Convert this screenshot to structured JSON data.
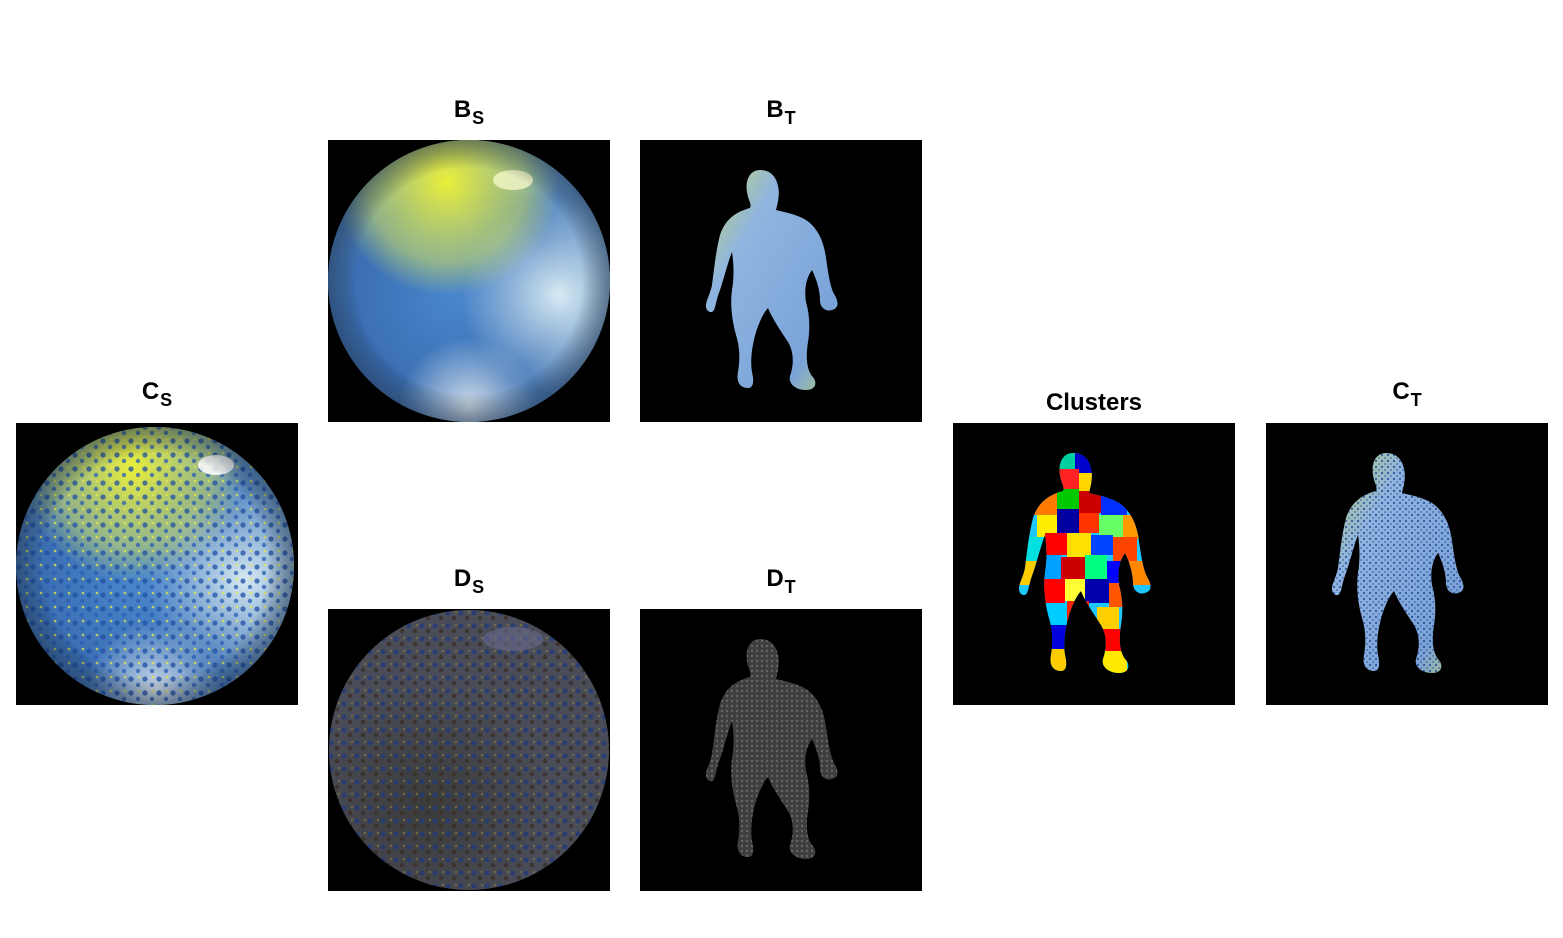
{
  "panels": {
    "cs": {
      "title": "C",
      "sub": "S"
    },
    "bs": {
      "title": "B",
      "sub": "S"
    },
    "bt": {
      "title": "B",
      "sub": "T"
    },
    "ds": {
      "title": "D",
      "sub": "S"
    },
    "dt": {
      "title": "D",
      "sub": "T"
    },
    "clusters": {
      "title": "Clusters",
      "sub": ""
    },
    "ct": {
      "title": "C",
      "sub": "T"
    }
  },
  "colors": {
    "background": "#000000",
    "sphere_blue": "#3f78c4",
    "sphere_light": "#bcd8ea",
    "sphere_yellow": "#e6ea3a",
    "figure_blue": "#8fb5e0",
    "detail_gray": "#5a5a5a"
  },
  "icons": {
    "sphere": "sphere-render",
    "figure": "humanoid-figure-render"
  }
}
